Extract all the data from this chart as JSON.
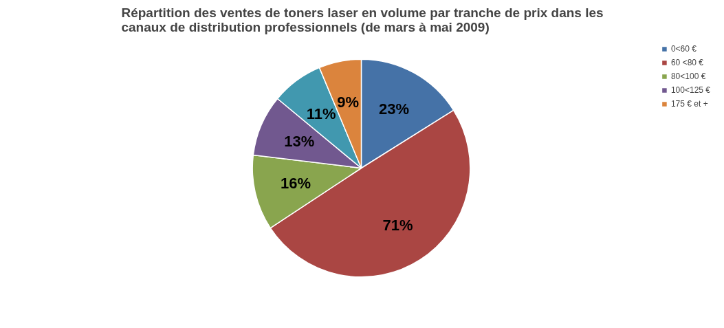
{
  "chart_data": {
    "type": "pie",
    "title": "Répartition des ventes de toners laser en volume par tranche de prix dans les\ncanaux de distribution professionnels (de mars à mai 2009)",
    "categories": [
      "0<60 €",
      "60 <80 €",
      "80<100 €",
      "100<125 €",
      null,
      "175 € et +"
    ],
    "values": [
      23,
      71,
      16,
      13,
      11,
      9
    ],
    "colors": [
      "#4572a7",
      "#aa4643",
      "#89a54e",
      "#71588f",
      "#4198af",
      "#db843d"
    ],
    "value_labels": [
      "23%",
      "71%",
      "16%",
      "13%",
      "11%",
      "9%"
    ],
    "legend": "right"
  }
}
